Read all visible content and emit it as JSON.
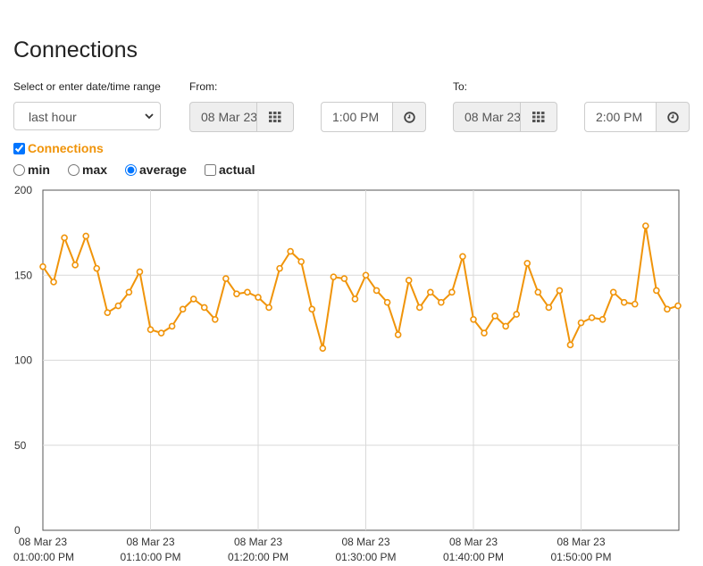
{
  "page": {
    "title": "Connections",
    "range_label": "Select or enter date/time range",
    "range_value": "last hour",
    "from_label": "From:",
    "from_date": "08 Mar 23",
    "from_time": "1:00 PM",
    "to_label": "To:",
    "to_date": "08 Mar 23",
    "to_time": "2:00 PM",
    "calendar_icon": "calendar-grid-icon",
    "clock_icon": "clock-icon"
  },
  "controls": {
    "series_label": "Connections",
    "series_checked": true,
    "series_color": "#f0940a",
    "aggregations": [
      {
        "label": "min",
        "kind": "radio",
        "checked": false
      },
      {
        "label": "max",
        "kind": "radio",
        "checked": false
      },
      {
        "label": "average",
        "kind": "radio",
        "checked": true
      },
      {
        "label": "actual",
        "kind": "checkbox",
        "checked": false
      }
    ]
  },
  "chart_data": {
    "type": "line",
    "title": "",
    "xlabel": "",
    "ylabel": "",
    "ylim": [
      0,
      200
    ],
    "yticks": [
      0,
      50,
      100,
      150,
      200
    ],
    "xtick_labels": [
      [
        "08 Mar 23",
        "01:00:00 PM"
      ],
      [
        "08 Mar 23",
        "01:10:00 PM"
      ],
      [
        "08 Mar 23",
        "01:20:00 PM"
      ],
      [
        "08 Mar 23",
        "01:30:00 PM"
      ],
      [
        "08 Mar 23",
        "01:40:00 PM"
      ],
      [
        "08 Mar 23",
        "01:50:00 PM"
      ]
    ],
    "grid": true,
    "series": [
      {
        "color": "#f0940a",
        "values": [
          155,
          146,
          172,
          156,
          173,
          154,
          128,
          132,
          140,
          152,
          118,
          116,
          120,
          130,
          136,
          131,
          124,
          148,
          139,
          140,
          137,
          131,
          154,
          164,
          158,
          130,
          107,
          149,
          148,
          136,
          150,
          141,
          134,
          115,
          147,
          131,
          140,
          134,
          140,
          161,
          124,
          116,
          126,
          120,
          127,
          157,
          140,
          131,
          141,
          109,
          122,
          125,
          124,
          140,
          134,
          133,
          179,
          141,
          130,
          132
        ]
      }
    ]
  }
}
